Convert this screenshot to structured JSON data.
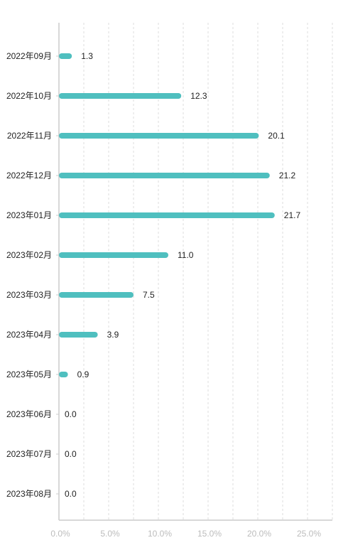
{
  "colors": {
    "bar": "#4fbfbf",
    "grid": "#dddddd",
    "axis": "#cccccc",
    "text": "#222222",
    "tick_text": "#bcbcbc"
  },
  "chart_data": {
    "type": "bar",
    "orientation": "horizontal",
    "categories": [
      "2022年09月",
      "2022年10月",
      "2022年11月",
      "2022年12月",
      "2023年01月",
      "2023年02月",
      "2023年03月",
      "2023年04月",
      "2023年05月",
      "2023年06月",
      "2023年07月",
      "2023年08月"
    ],
    "values": [
      1.3,
      12.3,
      20.1,
      21.2,
      21.7,
      11.0,
      7.5,
      3.9,
      0.9,
      0.0,
      0.0,
      0.0
    ],
    "value_labels": [
      "1.3",
      "12.3",
      "20.1",
      "21.2",
      "21.7",
      "11.0",
      "7.5",
      "3.9",
      "0.9",
      "0.0",
      "0.0",
      "0.0"
    ],
    "x_ticks": [
      0,
      5,
      10,
      15,
      20,
      25
    ],
    "x_tick_labels": [
      "0.0%",
      "5.0%",
      "10.0%",
      "15.0%",
      "20.0%",
      "25.0%"
    ],
    "xlim": [
      0,
      27.5
    ],
    "grid": "vertical-dashed",
    "legend": "none"
  }
}
